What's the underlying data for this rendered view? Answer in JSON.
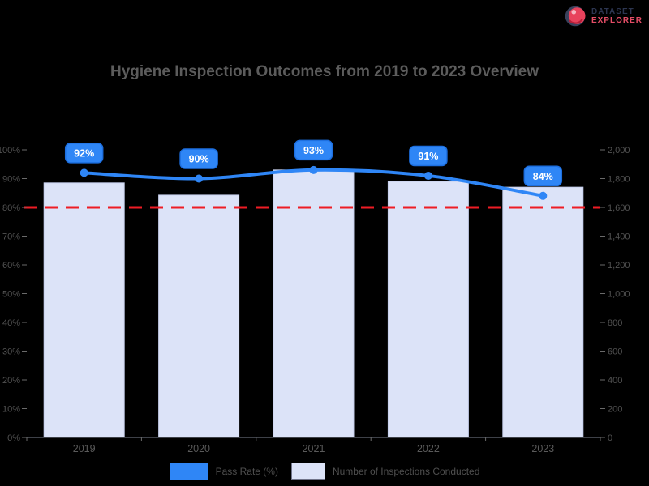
{
  "title": "Hygiene Inspection Outcomes from 2019 to 2023 Overview",
  "logo": {
    "line1": "DATASET",
    "line2": "EXPLORER"
  },
  "colors": {
    "background": "#000000",
    "accent_blue": "#2F86F6",
    "bar_fill": "#DCE3F8",
    "bar_border": "#C7D0EE",
    "threshold_red": "#EE1C25",
    "title_text": "#5C5C5C",
    "axis_text": "#525252",
    "x_label_text": "#5A5A5A",
    "legend_text": "#4F4F4F",
    "pill_text": "#FFFFFF",
    "pill_border": "#1D6FE0"
  },
  "legend": {
    "items": [
      {
        "label": "Pass Rate (%)",
        "color": "#2F86F6"
      },
      {
        "label": "Number of Inspections Conducted",
        "color": "#DCE3F8"
      }
    ]
  },
  "chart_data": {
    "type": "combo (bar + line, dual axis)",
    "title": "Hygiene Inspection Outcomes from 2019 to 2023 Overview",
    "categories": [
      "2019",
      "2020",
      "2021",
      "2022",
      "2023"
    ],
    "series": [
      {
        "name": "Pass Rate (%)",
        "type": "line",
        "axis": "left",
        "color": "#2F86F6",
        "values": [
          92,
          90,
          93,
          91,
          84
        ],
        "data_labels": [
          "92%",
          "90%",
          "93%",
          "91%",
          "84%"
        ]
      },
      {
        "name": "Number of Inspections Conducted",
        "type": "bar",
        "axis": "right",
        "color": "#DCE3F8",
        "values": [
          1770,
          1685,
          1860,
          1780,
          1740
        ]
      }
    ],
    "left_axis": {
      "min": 0,
      "max": 100,
      "step": 10,
      "tick_suffix": "%"
    },
    "right_axis": {
      "min": 0,
      "max": 2000,
      "step": 200,
      "format": "thousands-comma"
    },
    "threshold_line": {
      "axis": "left",
      "value": 80,
      "color": "#EE1C25",
      "style": "dashed"
    },
    "grid": false,
    "legend_position": "bottom"
  }
}
